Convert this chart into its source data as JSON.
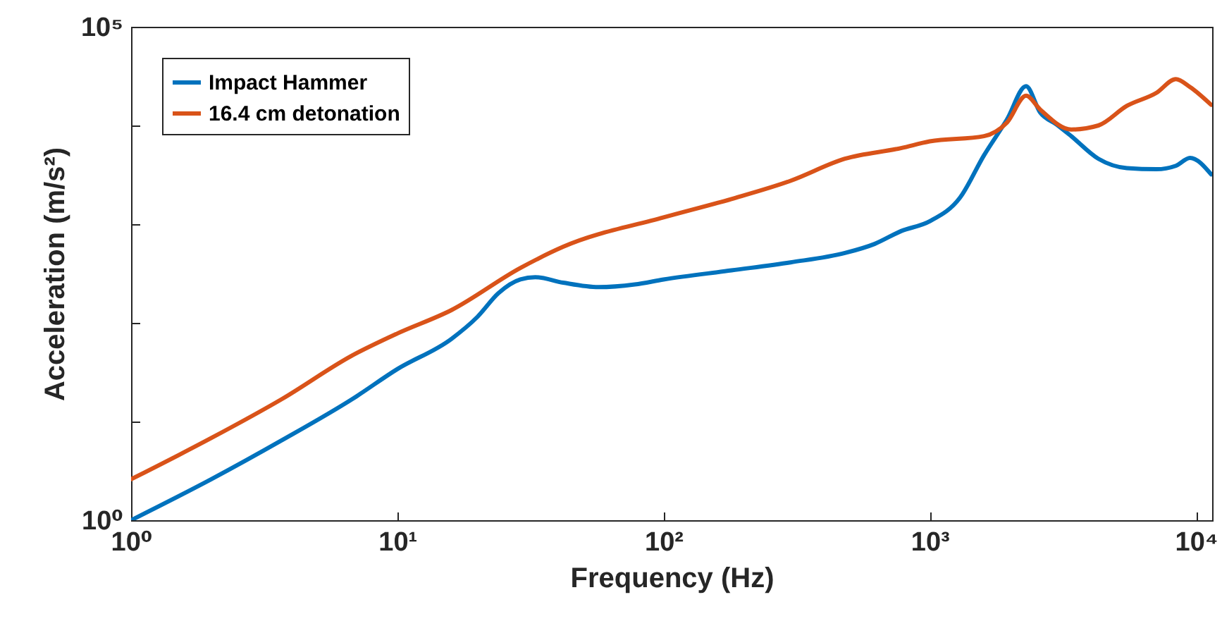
{
  "chart_data": {
    "type": "line",
    "xlabel": "Frequency (Hz)",
    "ylabel": "Acceleration (m/s²)",
    "log": "xy",
    "grid": false,
    "legend": "top left",
    "xlim": [
      1,
      11500
    ],
    "ylim": [
      1,
      100000
    ],
    "xticks": [
      {
        "value": 1,
        "label": "10⁰"
      },
      {
        "value": 10,
        "label": "10¹"
      },
      {
        "value": 100,
        "label": "10²"
      },
      {
        "value": 1000,
        "label": "10³"
      },
      {
        "value": 10000,
        "label": "10⁴"
      }
    ],
    "yticks": [
      {
        "value": 1,
        "label": "10⁰"
      },
      {
        "value": 10,
        "label": null
      },
      {
        "value": 100,
        "label": null
      },
      {
        "value": 1000,
        "label": null
      },
      {
        "value": 10000,
        "label": null
      },
      {
        "value": 100000,
        "label": "10⁵"
      }
    ],
    "series": [
      {
        "name": "Impact Hammer",
        "color": "#0072bd",
        "x": [
          1,
          2,
          3.7,
          6.8,
          10,
          16,
          20,
          24,
          29,
          33,
          42,
          57,
          78,
          100,
          180,
          300,
          480,
          620,
          780,
          1000,
          1300,
          1600,
          1950,
          2300,
          2600,
          3000,
          3400,
          4300,
          5500,
          7100,
          8400,
          9500,
          11400
        ],
        "values": [
          1,
          2.6,
          6.5,
          17,
          34,
          69,
          115,
          200,
          275,
          290,
          255,
          230,
          245,
          275,
          340,
          410,
          510,
          630,
          850,
          1070,
          1860,
          5000,
          11500,
          25000,
          13500,
          10200,
          7800,
          4600,
          3700,
          3600,
          3900,
          4700,
          3200
        ]
      },
      {
        "name": "16.4 cm detonation",
        "color": "#d95319",
        "x": [
          1,
          2,
          3.7,
          6.8,
          10,
          16,
          29,
          42,
          100,
          180,
          300,
          480,
          780,
          1000,
          1600,
          1950,
          2300,
          2600,
          3400,
          4300,
          5500,
          7100,
          8400,
          9500,
          11400
        ],
        "values": [
          2.6,
          6.8,
          17,
          47,
          78,
          135,
          360,
          590,
          1170,
          1800,
          2750,
          4600,
          5900,
          6900,
          7800,
          10700,
          20000,
          14500,
          9100,
          10000,
          15800,
          21400,
          29500,
          24500,
          16200
        ]
      }
    ]
  }
}
